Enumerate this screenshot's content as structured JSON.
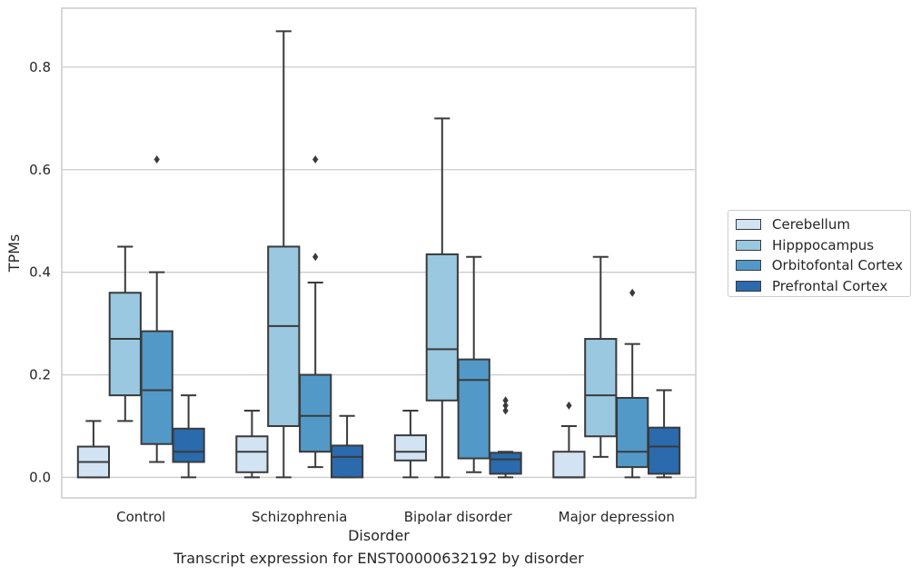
{
  "caption": "Transcript expression for ENST00000632192 by disorder",
  "chart_data": {
    "type": "box",
    "xlabel": "Disorder",
    "ylabel": "TPMs",
    "ylim": [
      -0.04,
      0.915
    ],
    "yticks": [
      0.0,
      0.2,
      0.4,
      0.6,
      0.8
    ],
    "ytick_labels": [
      "0.0",
      "0.2",
      "0.4",
      "0.6",
      "0.8"
    ],
    "grid": "horizontal",
    "legend_position": "right",
    "categories": [
      "Control",
      "Schizophrenia",
      "Bipolar disorder",
      "Major depression"
    ],
    "series": [
      {
        "name": "Cerebellum",
        "color": "#d2e3f3",
        "boxes": [
          {
            "whislo": 0.0,
            "q1": 0.0,
            "med": 0.03,
            "q3": 0.06,
            "whishi": 0.11,
            "fliers": []
          },
          {
            "whislo": 0.0,
            "q1": 0.01,
            "med": 0.05,
            "q3": 0.08,
            "whishi": 0.13,
            "fliers": []
          },
          {
            "whislo": 0.0,
            "q1": 0.033,
            "med": 0.05,
            "q3": 0.082,
            "whishi": 0.13,
            "fliers": []
          },
          {
            "whislo": 0.0,
            "q1": 0.0,
            "med": 0.0,
            "q3": 0.05,
            "whishi": 0.1,
            "fliers": [
              0.14
            ]
          }
        ]
      },
      {
        "name": "Hipppocampus",
        "color": "#9ac8e0",
        "boxes": [
          {
            "whislo": 0.11,
            "q1": 0.16,
            "med": 0.27,
            "q3": 0.36,
            "whishi": 0.45,
            "fliers": []
          },
          {
            "whislo": 0.0,
            "q1": 0.1,
            "med": 0.295,
            "q3": 0.45,
            "whishi": 0.87,
            "fliers": []
          },
          {
            "whislo": 0.0,
            "q1": 0.15,
            "med": 0.25,
            "q3": 0.435,
            "whishi": 0.7,
            "fliers": []
          },
          {
            "whislo": 0.04,
            "q1": 0.08,
            "med": 0.16,
            "q3": 0.27,
            "whishi": 0.43,
            "fliers": []
          }
        ]
      },
      {
        "name": "Orbitofontal Cortex",
        "color": "#5299c8",
        "boxes": [
          {
            "whislo": 0.03,
            "q1": 0.065,
            "med": 0.17,
            "q3": 0.285,
            "whishi": 0.4,
            "fliers": [
              0.62
            ]
          },
          {
            "whislo": 0.02,
            "q1": 0.05,
            "med": 0.12,
            "q3": 0.2,
            "whishi": 0.38,
            "fliers": [
              0.43,
              0.62
            ]
          },
          {
            "whislo": 0.01,
            "q1": 0.037,
            "med": 0.19,
            "q3": 0.23,
            "whishi": 0.43,
            "fliers": []
          },
          {
            "whislo": 0.0,
            "q1": 0.02,
            "med": 0.05,
            "q3": 0.155,
            "whishi": 0.26,
            "fliers": [
              0.36
            ]
          }
        ]
      },
      {
        "name": "Prefrontal Cortex",
        "color": "#2a6aad",
        "boxes": [
          {
            "whislo": 0.0,
            "q1": 0.03,
            "med": 0.05,
            "q3": 0.095,
            "whishi": 0.16,
            "fliers": []
          },
          {
            "whislo": 0.0,
            "q1": 0.0,
            "med": 0.04,
            "q3": 0.062,
            "whishi": 0.12,
            "fliers": []
          },
          {
            "whislo": 0.0,
            "q1": 0.007,
            "med": 0.035,
            "q3": 0.048,
            "whishi": 0.05,
            "fliers": [
              0.13,
              0.14,
              0.15
            ]
          },
          {
            "whislo": 0.0,
            "q1": 0.007,
            "med": 0.06,
            "q3": 0.097,
            "whishi": 0.17,
            "fliers": []
          }
        ]
      }
    ]
  }
}
